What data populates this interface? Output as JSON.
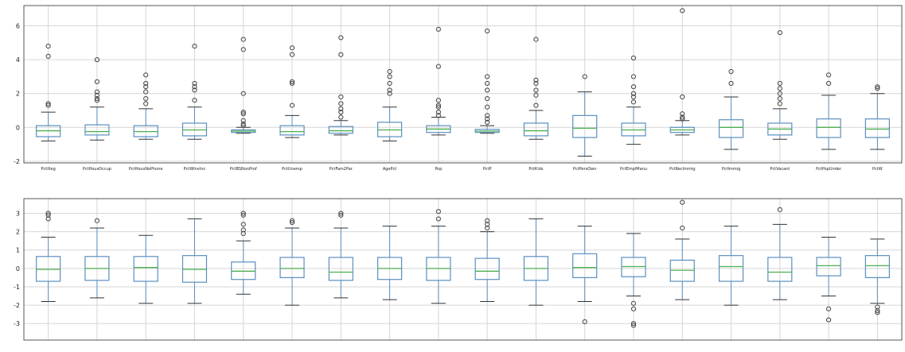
{
  "chart_data": [
    {
      "type": "box",
      "grid": true,
      "ylim": [
        -2.1,
        7.2
      ],
      "yticks": [
        -2,
        0,
        2,
        4,
        6
      ],
      "colors": {
        "box": "#5a8fc0",
        "median": "#4caf50",
        "flier": "#444444",
        "grid": "#d6d6d6",
        "frame": "#555555"
      },
      "boxes": [
        {
          "label": "PctIlleg",
          "q1": -0.55,
          "med": -0.2,
          "q3": 0.1,
          "wlo": -0.8,
          "whi": 0.9,
          "fliers": [
            1.3,
            1.4,
            4.2,
            4.8
          ]
        },
        {
          "label": "PctHousOccup",
          "q1": -0.45,
          "med": -0.25,
          "q3": 0.15,
          "wlo": -0.75,
          "whi": 1.2,
          "fliers": [
            1.6,
            1.7,
            1.9,
            2.1,
            2.7,
            4.0
          ]
        },
        {
          "label": "PctHousNoPhone",
          "q1": -0.55,
          "med": -0.25,
          "q3": 0.1,
          "wlo": -0.7,
          "whi": 1.1,
          "fliers": [
            1.4,
            1.7,
            2.1,
            2.4,
            2.6,
            3.1
          ]
        },
        {
          "label": "PctWInvInc",
          "q1": -0.5,
          "med": -0.15,
          "q3": 0.25,
          "wlo": -0.7,
          "whi": 1.2,
          "fliers": [
            1.6,
            2.2,
            2.4,
            2.6,
            4.8
          ]
        },
        {
          "label": "PctBSNonProf",
          "q1": -0.3,
          "med": -0.22,
          "q3": -0.15,
          "wlo": -0.35,
          "whi": 0.0,
          "fliers": [
            0.1,
            0.2,
            0.4,
            0.8,
            0.9,
            2.0,
            4.6,
            5.2
          ]
        },
        {
          "label": "PctUnemp",
          "q1": -0.45,
          "med": -0.25,
          "q3": 0.1,
          "wlo": -0.6,
          "whi": 0.7,
          "fliers": [
            1.3,
            2.6,
            2.7,
            4.3,
            4.7
          ]
        },
        {
          "label": "PctFam2Par",
          "q1": -0.35,
          "med": -0.2,
          "q3": 0.05,
          "wlo": -0.45,
          "whi": 0.4,
          "fliers": [
            0.6,
            0.9,
            1.1,
            1.4,
            1.8,
            4.3,
            5.3
          ]
        },
        {
          "label": "AgePct",
          "q1": -0.55,
          "med": -0.15,
          "q3": 0.3,
          "wlo": -0.8,
          "whi": 1.2,
          "fliers": [
            2.0,
            2.2,
            2.6,
            3.0,
            3.3
          ]
        },
        {
          "label": "Pop",
          "q1": -0.3,
          "med": -0.1,
          "q3": 0.1,
          "wlo": -0.45,
          "whi": 0.6,
          "fliers": [
            0.7,
            0.9,
            1.2,
            1.3,
            1.6,
            3.6,
            5.8
          ]
        },
        {
          "label": "PctP",
          "q1": -0.3,
          "med": -0.22,
          "q3": -0.12,
          "wlo": -0.35,
          "whi": 0.1,
          "fliers": [
            0.3,
            0.5,
            0.7,
            1.2,
            1.7,
            2.2,
            2.6,
            3.0,
            5.7
          ]
        },
        {
          "label": "PctKids",
          "q1": -0.5,
          "med": -0.2,
          "q3": 0.25,
          "wlo": -0.7,
          "whi": 1.0,
          "fliers": [
            1.3,
            1.9,
            2.2,
            2.6,
            2.8,
            5.2
          ]
        },
        {
          "label": "PctPersOwn",
          "q1": -0.6,
          "med": -0.05,
          "q3": 0.7,
          "wlo": -1.7,
          "whi": 2.1,
          "fliers": [
            3.0
          ]
        },
        {
          "label": "PctEmplManu",
          "q1": -0.5,
          "med": -0.15,
          "q3": 0.25,
          "wlo": -1.0,
          "whi": 1.2,
          "fliers": [
            1.5,
            1.8,
            2.0,
            2.4,
            3.0,
            4.1
          ]
        },
        {
          "label": "PctRecImmig",
          "q1": -0.3,
          "med": -0.15,
          "q3": 0.0,
          "wlo": -0.45,
          "whi": 0.4,
          "fliers": [
            0.5,
            0.6,
            0.8,
            1.8,
            6.9
          ]
        },
        {
          "label": "PctImmig",
          "q1": -0.6,
          "med": 0.0,
          "q3": 0.45,
          "wlo": -1.3,
          "whi": 1.8,
          "fliers": [
            2.6,
            3.3
          ]
        },
        {
          "label": "PctVacant",
          "q1": -0.45,
          "med": -0.1,
          "q3": 0.25,
          "wlo": -0.7,
          "whi": 1.1,
          "fliers": [
            1.4,
            1.7,
            2.0,
            2.3,
            2.6,
            5.6
          ]
        },
        {
          "label": "PctPopUnder",
          "q1": -0.6,
          "med": 0.0,
          "q3": 0.5,
          "wlo": -1.3,
          "whi": 1.9,
          "fliers": [
            2.6,
            3.1
          ]
        },
        {
          "label": "PctW",
          "q1": -0.6,
          "med": -0.1,
          "q3": 0.5,
          "wlo": -1.3,
          "whi": 2.0,
          "fliers": [
            2.3,
            2.4
          ]
        }
      ]
    },
    {
      "type": "box",
      "grid": true,
      "ylim": [
        -3.9,
        3.8
      ],
      "yticks": [
        -3,
        -2,
        -1,
        0,
        1,
        2,
        3
      ],
      "colors": {
        "box": "#5a8fc0",
        "median": "#4caf50",
        "flier": "#444444",
        "grid": "#d6d6d6",
        "frame": "#555555"
      },
      "boxes": [
        {
          "label": "",
          "q1": -0.7,
          "med": -0.05,
          "q3": 0.65,
          "wlo": -1.8,
          "whi": 1.7,
          "fliers": [
            2.7,
            2.9,
            3.0
          ]
        },
        {
          "label": "",
          "q1": -0.65,
          "med": 0.0,
          "q3": 0.65,
          "wlo": -1.6,
          "whi": 2.2,
          "fliers": [
            2.6
          ]
        },
        {
          "label": "",
          "q1": -0.7,
          "med": 0.05,
          "q3": 0.65,
          "wlo": -1.9,
          "whi": 1.8,
          "fliers": []
        },
        {
          "label": "",
          "q1": -0.75,
          "med": -0.05,
          "q3": 0.7,
          "wlo": -1.9,
          "whi": 2.7,
          "fliers": []
        },
        {
          "label": "",
          "q1": -0.6,
          "med": -0.15,
          "q3": 0.35,
          "wlo": -1.4,
          "whi": 1.5,
          "fliers": [
            1.9,
            2.1,
            2.4,
            2.9,
            3.0
          ]
        },
        {
          "label": "",
          "q1": -0.5,
          "med": 0.0,
          "q3": 0.6,
          "wlo": -2.0,
          "whi": 2.2,
          "fliers": [
            2.5,
            2.6
          ]
        },
        {
          "label": "",
          "q1": -0.65,
          "med": -0.2,
          "q3": 0.6,
          "wlo": -1.6,
          "whi": 2.2,
          "fliers": [
            2.9,
            3.0
          ]
        },
        {
          "label": "",
          "q1": -0.6,
          "med": 0.0,
          "q3": 0.6,
          "wlo": -1.7,
          "whi": 2.3,
          "fliers": []
        },
        {
          "label": "",
          "q1": -0.65,
          "med": 0.0,
          "q3": 0.6,
          "wlo": -1.9,
          "whi": 2.3,
          "fliers": [
            2.7,
            3.1
          ]
        },
        {
          "label": "",
          "q1": -0.6,
          "med": -0.15,
          "q3": 0.55,
          "wlo": -1.8,
          "whi": 2.0,
          "fliers": [
            2.2,
            2.4,
            2.6
          ]
        },
        {
          "label": "",
          "q1": -0.65,
          "med": 0.0,
          "q3": 0.65,
          "wlo": -2.0,
          "whi": 2.7,
          "fliers": []
        },
        {
          "label": "",
          "q1": -0.5,
          "med": 0.05,
          "q3": 0.8,
          "wlo": -1.8,
          "whi": 2.3,
          "fliers": [
            -2.9
          ]
        },
        {
          "label": "",
          "q1": -0.45,
          "med": 0.1,
          "q3": 0.6,
          "wlo": -1.5,
          "whi": 1.9,
          "fliers": [
            -1.9,
            -2.2,
            -3.0,
            -3.1
          ]
        },
        {
          "label": "",
          "q1": -0.7,
          "med": -0.1,
          "q3": 0.45,
          "wlo": -1.7,
          "whi": 1.6,
          "fliers": [
            2.2,
            3.6
          ]
        },
        {
          "label": "",
          "q1": -0.7,
          "med": 0.1,
          "q3": 0.7,
          "wlo": -2.0,
          "whi": 2.3,
          "fliers": []
        },
        {
          "label": "",
          "q1": -0.7,
          "med": -0.2,
          "q3": 0.6,
          "wlo": -1.7,
          "whi": 2.4,
          "fliers": [
            3.2
          ]
        },
        {
          "label": "",
          "q1": -0.4,
          "med": 0.15,
          "q3": 0.6,
          "wlo": -1.5,
          "whi": 1.7,
          "fliers": [
            -2.2,
            -2.8
          ]
        },
        {
          "label": "",
          "q1": -0.5,
          "med": 0.15,
          "q3": 0.7,
          "wlo": -1.9,
          "whi": 1.6,
          "fliers": [
            -2.1,
            -2.3,
            -2.4
          ]
        }
      ]
    }
  ]
}
